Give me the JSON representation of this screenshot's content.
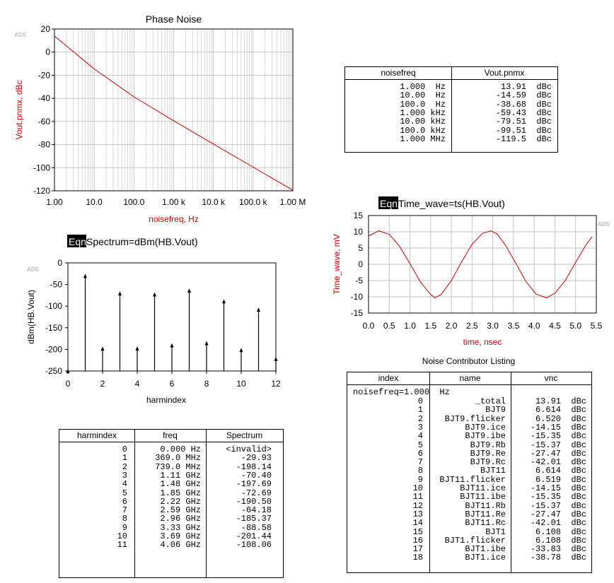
{
  "colors": {
    "curve": "#cc0000",
    "grid": "#c0c0c0",
    "axis_label_red": "#cc0000"
  },
  "logo_text": "ADS",
  "chart_data": [
    {
      "id": "phase_noise",
      "type": "line",
      "title": "Phase Noise",
      "xlabel": "noisefreq, Hz",
      "ylabel": "Vout.pnmx, dBc",
      "xscale": "log",
      "xlim": [
        1,
        1000000
      ],
      "ylim": [
        -120,
        20
      ],
      "xticks": [
        "1.00",
        "10.0",
        "100.0",
        "1.00 k",
        "10.0 k",
        "100.0 k",
        "1.00 M"
      ],
      "yticks": [
        "20",
        "0",
        "-20",
        "-40",
        "-60",
        "-80",
        "-100",
        "-120"
      ],
      "series": [
        {
          "x": [
            1,
            10,
            100,
            1000,
            10000,
            100000,
            1000000
          ],
          "y": [
            13.91,
            -14.59,
            -38.68,
            -59.43,
            -79.51,
            -99.51,
            -119.5
          ]
        }
      ]
    },
    {
      "id": "spectrum",
      "type": "stem",
      "equation_tag": "Eqn",
      "title": "Spectrum=dBm(HB.Vout)",
      "xlabel": "harmindex",
      "ylabel": "dBm(HB.Vout)",
      "xlim": [
        0,
        12
      ],
      "ylim": [
        -250,
        0
      ],
      "xticks": [
        "0",
        "2",
        "4",
        "6",
        "8",
        "10",
        "12"
      ],
      "yticks": [
        "0",
        "-50",
        "-100",
        "-150",
        "-200",
        "-250"
      ],
      "x": [
        0,
        1,
        2,
        3,
        4,
        5,
        6,
        7,
        8,
        9,
        10,
        11,
        12
      ],
      "y": [
        -250,
        -29.93,
        -198.14,
        -70.4,
        -197.69,
        -72.69,
        -190.5,
        -64.18,
        -185.37,
        -88.58,
        -201.44,
        -108.06,
        -222
      ]
    },
    {
      "id": "time_wave",
      "type": "line",
      "equation_tag": "Eqn",
      "title": "Time_wave=ts(HB.Vout)",
      "xlabel": "time, nsec",
      "ylabel": "Time_wave, mV",
      "xlim": [
        0,
        5.5
      ],
      "ylim": [
        -15,
        15
      ],
      "xticks": [
        "0.0",
        "0.5",
        "1.0",
        "1.5",
        "2.0",
        "2.5",
        "3.0",
        "3.5",
        "4.0",
        "4.5",
        "5.0",
        "5.5"
      ],
      "yticks": [
        "15",
        "10",
        "5",
        "0",
        "-5",
        "-10",
        "-15"
      ],
      "series": [
        {
          "x": [
            0,
            0.25,
            0.5,
            0.75,
            1.0,
            1.25,
            1.5,
            1.6,
            1.75,
            2.0,
            2.25,
            2.5,
            2.75,
            2.95,
            3.1,
            3.3,
            3.55,
            3.8,
            4.05,
            4.3,
            4.5,
            4.75,
            5.0,
            5.25,
            5.4
          ],
          "y": [
            8.7,
            10.3,
            9.2,
            5.5,
            0.2,
            -5.4,
            -9.3,
            -10.3,
            -9.3,
            -5.0,
            0.8,
            6.2,
            9.5,
            10.3,
            9.4,
            6.0,
            0.5,
            -5.3,
            -9.2,
            -10.3,
            -8.9,
            -5.0,
            0.6,
            6.0,
            8.5
          ]
        }
      ]
    }
  ],
  "noise_table": {
    "headers": [
      "noisefreq",
      "Vout.pnmx"
    ],
    "rows": [
      [
        "1.000  Hz",
        "13.91  dBc"
      ],
      [
        "10.00  Hz",
        "-14.59  dBc"
      ],
      [
        "100.0  Hz",
        "-38.68  dBc"
      ],
      [
        "1.000 kHz",
        "-59.43  dBc"
      ],
      [
        "10.00 kHz",
        "-79.51  dBc"
      ],
      [
        "100.0 kHz",
        "-99.51  dBc"
      ],
      [
        "1.000 MHz",
        "-119.5  dBc"
      ]
    ]
  },
  "harm_table": {
    "headers": [
      "harmindex",
      "freq",
      "Spectrum"
    ],
    "rows": [
      [
        "0",
        "0.000 Hz",
        "<invalid>"
      ],
      [
        "1",
        "369.0 MHz",
        "-29.93"
      ],
      [
        "2",
        "739.0 MHz",
        "-198.14"
      ],
      [
        "3",
        "1.11 GHz",
        "-70.40"
      ],
      [
        "4",
        "1.48 GHz",
        "-197.69"
      ],
      [
        "5",
        "1.85 GHz",
        "-72.69"
      ],
      [
        "6",
        "2.22 GHz",
        "-190.50"
      ],
      [
        "7",
        "2.59 GHz",
        "-64.18"
      ],
      [
        "8",
        "2.96 GHz",
        "-185.37"
      ],
      [
        "9",
        "3.33 GHz",
        "-88.58"
      ],
      [
        "10",
        "3.69 GHz",
        "-201.44"
      ],
      [
        "11",
        "4.06 GHz",
        "-108.06"
      ]
    ]
  },
  "contrib_table": {
    "title": "Noise Contributor Listing",
    "headers": [
      "index",
      "name",
      "vnc"
    ],
    "group_label": "noisefreq=1.000  Hz",
    "rows": [
      [
        "0",
        "_total",
        "13.91  dBc"
      ],
      [
        "1",
        "BJT9",
        "6.614  dBc"
      ],
      [
        "2",
        "BJT9.flicker",
        "6.520  dBc"
      ],
      [
        "3",
        "BJT9.ice",
        "-14.15  dBc"
      ],
      [
        "4",
        "BJT9.ibe",
        "-15.35  dBc"
      ],
      [
        "5",
        "BJT9.Rb",
        "-15.37  dBc"
      ],
      [
        "6",
        "BJT9.Re",
        "-27.47  dBc"
      ],
      [
        "7",
        "BJT9.Rc",
        "-42.01  dBc"
      ],
      [
        "8",
        "BJT11",
        "6.614  dBc"
      ],
      [
        "9",
        "BJT11.flicker",
        "6.519  dBc"
      ],
      [
        "10",
        "BJT11.ice",
        "-14.15  dBc"
      ],
      [
        "11",
        "BJT11.ibe",
        "-15.35  dBc"
      ],
      [
        "12",
        "BJT11.Rb",
        "-15.37  dBc"
      ],
      [
        "13",
        "BJT11.Re",
        "-27.47  dBc"
      ],
      [
        "14",
        "BJT11.Rc",
        "-42.01  dBc"
      ],
      [
        "15",
        "BJT1",
        "6.108  dBc"
      ],
      [
        "16",
        "BJT1.flicker",
        "6.108  dBc"
      ],
      [
        "17",
        "BJT1.ibe",
        "-33.83  dBc"
      ],
      [
        "18",
        "BJT1.ice",
        "-38.78  dBc"
      ]
    ]
  }
}
